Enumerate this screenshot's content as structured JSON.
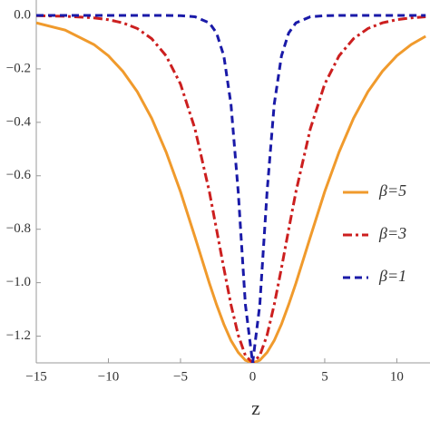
{
  "chart_data": {
    "type": "line",
    "x_label": "z",
    "x": [
      -15,
      -13,
      -11,
      -10,
      -9,
      -8,
      -7,
      -6,
      -5,
      -4,
      -3,
      -2.5,
      -2,
      -1.5,
      -1,
      -0.5,
      0,
      0.5,
      1,
      1.5,
      2,
      2.5,
      3,
      4,
      5,
      6,
      7,
      8,
      9,
      10,
      11,
      12
    ],
    "series": [
      {
        "name": "β=5",
        "color": "#f09a2c",
        "dash": "solid",
        "values": [
          -0.028,
          -0.055,
          -0.109,
          -0.151,
          -0.209,
          -0.285,
          -0.385,
          -0.511,
          -0.66,
          -0.829,
          -1.002,
          -1.082,
          -1.155,
          -1.216,
          -1.261,
          -1.29,
          -1.3,
          -1.29,
          -1.261,
          -1.216,
          -1.155,
          -1.082,
          -1.002,
          -0.829,
          -0.66,
          -0.511,
          -0.385,
          -0.285,
          -0.209,
          -0.151,
          -0.109,
          -0.078
        ]
      },
      {
        "name": "β=3",
        "color": "#cc1f1f",
        "dash": "dashdot",
        "values": [
          -0.001,
          -0.003,
          -0.009,
          -0.016,
          -0.028,
          -0.049,
          -0.087,
          -0.151,
          -0.257,
          -0.424,
          -0.66,
          -0.801,
          -0.945,
          -1.082,
          -1.196,
          -1.273,
          -1.3,
          -1.273,
          -1.196,
          -1.082,
          -0.945,
          -0.801,
          -0.66,
          -0.424,
          -0.257,
          -0.151,
          -0.087,
          -0.049,
          -0.028,
          -0.016,
          -0.009,
          -0.005
        ]
      },
      {
        "name": "β=1",
        "color": "#1a1aa8",
        "dash": "dashed",
        "values": [
          0,
          0,
          0,
          0,
          0,
          0,
          0,
          0,
          -0.001,
          -0.005,
          -0.028,
          -0.066,
          -0.151,
          -0.332,
          -0.66,
          -1.082,
          -1.3,
          -1.082,
          -0.66,
          -0.332,
          -0.151,
          -0.066,
          -0.028,
          -0.005,
          -0.001,
          0,
          0,
          0,
          0,
          0,
          0,
          0
        ]
      }
    ],
    "xlim": [
      -15,
      12.3
    ],
    "ylim": [
      -1.3,
      0
    ],
    "xticks": [
      {
        "value": -15,
        "label": "−15"
      },
      {
        "value": -10,
        "label": "−10"
      },
      {
        "value": -5,
        "label": "−5"
      },
      0,
      5,
      10
    ],
    "yticks": [
      {
        "value": 0,
        "label": "0.0"
      },
      {
        "value": -0.2,
        "label": "−0.2"
      },
      {
        "value": -0.4,
        "label": "−0.4"
      },
      {
        "value": -0.6,
        "label": "−0.6"
      },
      {
        "value": -0.8,
        "label": "−0.8"
      },
      {
        "value": -1.0,
        "label": "−1.0"
      },
      {
        "value": -1.2,
        "label": "−1.2"
      }
    ],
    "legend": "right"
  }
}
